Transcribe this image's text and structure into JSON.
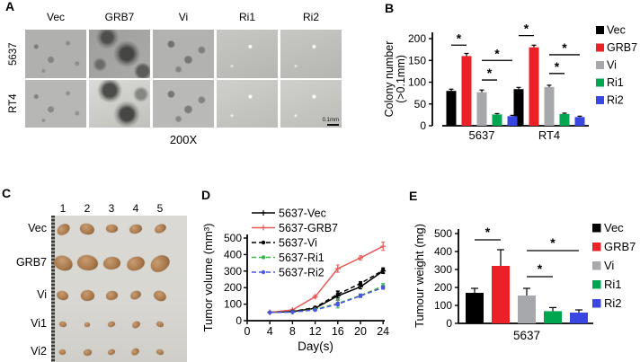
{
  "panels": {
    "a": {
      "label": "A",
      "column_labels": [
        "Vec",
        "GRB7",
        "Vi",
        "Ri1",
        "Ri2"
      ],
      "row_labels": [
        "5637",
        "RT4"
      ],
      "magnification": "200X",
      "scale_bar_label": "0.1mm"
    },
    "b": {
      "label": "B"
    },
    "c": {
      "label": "C",
      "column_labels": [
        "1",
        "2",
        "3",
        "4",
        "5"
      ],
      "row_labels": [
        "Vec",
        "GRB7",
        "Vi",
        "Vi1",
        "Vi2"
      ],
      "tumor_rows": [
        {
          "label": "Vec",
          "w": 15,
          "h": 11
        },
        {
          "label": "GRB7",
          "w": 20,
          "h": 15
        },
        {
          "label": "Vi",
          "w": 14,
          "h": 11
        },
        {
          "label": "Vi1",
          "w": 9,
          "h": 7
        },
        {
          "label": "Vi2",
          "w": 9,
          "h": 7
        }
      ]
    },
    "d": {
      "label": "D"
    },
    "e": {
      "label": "E"
    }
  },
  "chart_data": [
    {
      "panel": "B",
      "type": "bar",
      "ylabel_lines": [
        "Colony number",
        "(>0.1mm)"
      ],
      "ylim": [
        0,
        200
      ],
      "yticks": [
        0,
        50,
        100,
        150,
        200
      ],
      "categories": [
        "5637",
        "RT4"
      ],
      "series": [
        {
          "name": "Vec",
          "color": "#000000",
          "values": [
            80,
            84
          ],
          "errors": [
            4,
            4
          ]
        },
        {
          "name": "GRB7",
          "color": "#ec2027",
          "values": [
            160,
            180
          ],
          "errors": [
            6,
            5
          ]
        },
        {
          "name": "Vi",
          "color": "#a6a8ab",
          "values": [
            77,
            89
          ],
          "errors": [
            5,
            4
          ]
        },
        {
          "name": "Ri1",
          "color": "#00a650",
          "values": [
            26,
            27
          ],
          "errors": [
            2,
            2
          ]
        },
        {
          "name": "Ri2",
          "color": "#3a46e0",
          "values": [
            22,
            20
          ],
          "errors": [
            2,
            2
          ]
        }
      ],
      "legend": [
        "Vec",
        "GRB7",
        "Vi",
        "Ri1",
        "Ri2"
      ],
      "legend_position": "right",
      "grid": false,
      "significance": [
        {
          "group": 0,
          "from": 0,
          "to": 1,
          "value": 185,
          "symbol": "*"
        },
        {
          "group": 0,
          "from": 2,
          "to": 3,
          "value": 105,
          "symbol": "*"
        },
        {
          "group": 0,
          "from": 2,
          "to": 4,
          "value": 150,
          "symbol": "*"
        },
        {
          "group": 1,
          "from": 0,
          "to": 1,
          "value": 207,
          "symbol": "*"
        },
        {
          "group": 1,
          "from": 2,
          "to": 3,
          "value": 120,
          "symbol": "*"
        },
        {
          "group": 1,
          "from": 2,
          "to": 4,
          "value": 163,
          "symbol": "*"
        }
      ]
    },
    {
      "panel": "D",
      "type": "line",
      "xlabel": "Day(s)",
      "ylabel": "Tumor volume (mm³)",
      "xlim": [
        0,
        24
      ],
      "ylim": [
        0,
        500
      ],
      "xticks": [
        0,
        4,
        8,
        12,
        16,
        20,
        24
      ],
      "yticks": [
        0,
        100,
        200,
        300,
        400,
        500
      ],
      "x": [
        4,
        8,
        12,
        16,
        20,
        24
      ],
      "series": [
        {
          "name": "5637-Vec",
          "color": "#000000",
          "dash": false,
          "marker": "plus",
          "values": [
            50,
            55,
            75,
            150,
            205,
            300
          ],
          "errors": [
            0,
            0,
            6,
            25,
            12,
            15
          ]
        },
        {
          "name": "5637-GRB7",
          "color": "#e65a56",
          "dash": false,
          "marker": "plus",
          "values": [
            50,
            65,
            145,
            315,
            380,
            450
          ],
          "errors": [
            0,
            5,
            8,
            22,
            12,
            25
          ]
        },
        {
          "name": "5637-Vi",
          "color": "#000000",
          "dash": true,
          "marker": "circle",
          "values": [
            50,
            55,
            80,
            160,
            225,
            305
          ],
          "errors": [
            0,
            0,
            6,
            20,
            12,
            15
          ]
        },
        {
          "name": "5637-Ri1",
          "color": "#3cb54b",
          "dash": true,
          "marker": "circle",
          "values": [
            50,
            52,
            68,
            105,
            152,
            210
          ],
          "errors": [
            0,
            0,
            5,
            28,
            10,
            15
          ]
        },
        {
          "name": "5637-Ri2",
          "color": "#4a55e2",
          "dash": true,
          "marker": "circle",
          "values": [
            50,
            52,
            65,
            100,
            150,
            200
          ],
          "errors": [
            0,
            0,
            5,
            12,
            10,
            10
          ]
        }
      ],
      "legend_position": "top-left",
      "grid": false
    },
    {
      "panel": "E",
      "type": "bar",
      "ylabel": "Tumour weight (mg)",
      "ylim": [
        0,
        500
      ],
      "yticks": [
        0,
        100,
        200,
        300,
        400,
        500
      ],
      "categories": [
        "5637"
      ],
      "series": [
        {
          "name": "Vec",
          "color": "#000000",
          "values": [
            170
          ],
          "errors": [
            25
          ]
        },
        {
          "name": "GRB7",
          "color": "#ec2027",
          "values": [
            320
          ],
          "errors": [
            90
          ]
        },
        {
          "name": "Vi",
          "color": "#a6a8ab",
          "values": [
            155
          ],
          "errors": [
            40
          ]
        },
        {
          "name": "Ri1",
          "color": "#00a650",
          "values": [
            68
          ],
          "errors": [
            20
          ]
        },
        {
          "name": "Ri2",
          "color": "#3a46e0",
          "values": [
            60
          ],
          "errors": [
            15
          ]
        }
      ],
      "legend": [
        "Vec",
        "GRB7",
        "Vi",
        "Ri1",
        "Ri2"
      ],
      "legend_position": "right",
      "grid": false,
      "significance": [
        {
          "from": 0,
          "to": 1,
          "value": 465,
          "symbol": "*"
        },
        {
          "from": 2,
          "to": 3,
          "value": 260,
          "symbol": "*"
        },
        {
          "from": 2,
          "to": 4,
          "value": 405,
          "symbol": "*"
        }
      ]
    }
  ]
}
